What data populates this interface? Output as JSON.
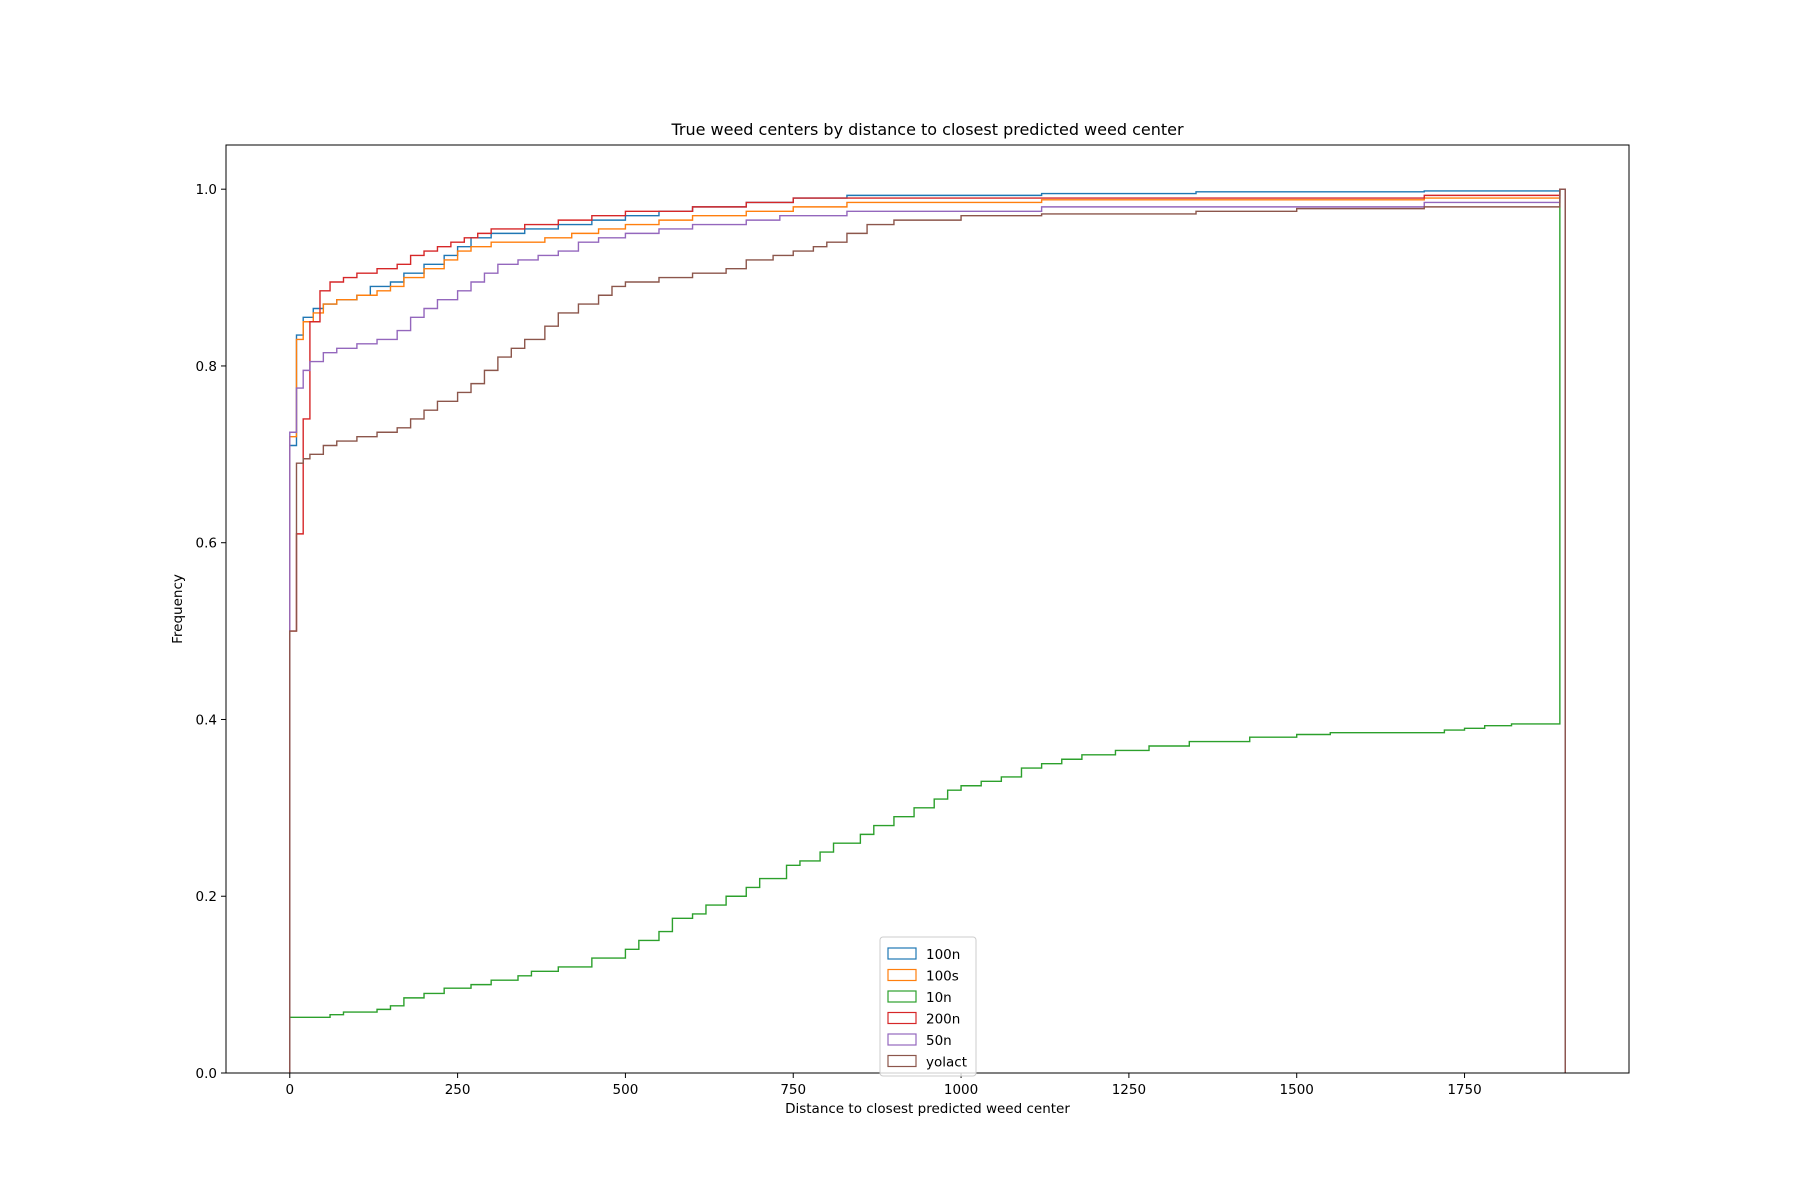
{
  "chart_data": {
    "type": "line",
    "subtype": "cumulative-step-histogram",
    "title": "True weed centers by distance to closest predicted weed center",
    "xlabel": "Distance to closest predicted weed center",
    "ylabel": "Frequency",
    "xlim": [
      -95,
      1995
    ],
    "ylim": [
      0,
      1.05
    ],
    "xticks": [
      0,
      250,
      500,
      750,
      1000,
      1250,
      1500,
      1750
    ],
    "yticks": [
      0.0,
      0.2,
      0.4,
      0.6,
      0.8,
      1.0
    ],
    "xtick_labels": [
      "0",
      "250",
      "500",
      "750",
      "1000",
      "1250",
      "1500",
      "1750"
    ],
    "ytick_labels": [
      "0.0",
      "0.2",
      "0.4",
      "0.6",
      "0.8",
      "1.0"
    ],
    "grid": false,
    "legend_position": "lower-center",
    "x_end": 1900,
    "series": [
      {
        "name": "100n",
        "color": "#1f77b4",
        "points": [
          [
            0,
            0.71
          ],
          [
            10,
            0.835
          ],
          [
            20,
            0.855
          ],
          [
            35,
            0.865
          ],
          [
            50,
            0.87
          ],
          [
            70,
            0.875
          ],
          [
            100,
            0.88
          ],
          [
            120,
            0.89
          ],
          [
            150,
            0.895
          ],
          [
            170,
            0.905
          ],
          [
            200,
            0.915
          ],
          [
            230,
            0.925
          ],
          [
            250,
            0.935
          ],
          [
            270,
            0.945
          ],
          [
            300,
            0.95
          ],
          [
            350,
            0.955
          ],
          [
            400,
            0.96
          ],
          [
            450,
            0.965
          ],
          [
            500,
            0.97
          ],
          [
            550,
            0.975
          ],
          [
            600,
            0.98
          ],
          [
            680,
            0.985
          ],
          [
            750,
            0.99
          ],
          [
            830,
            0.993
          ],
          [
            1120,
            0.995
          ],
          [
            1350,
            0.997
          ],
          [
            1690,
            0.998
          ]
        ]
      },
      {
        "name": "100s",
        "color": "#ff7f0e",
        "points": [
          [
            0,
            0.72
          ],
          [
            10,
            0.83
          ],
          [
            20,
            0.85
          ],
          [
            35,
            0.86
          ],
          [
            50,
            0.87
          ],
          [
            70,
            0.875
          ],
          [
            100,
            0.88
          ],
          [
            130,
            0.885
          ],
          [
            150,
            0.89
          ],
          [
            170,
            0.9
          ],
          [
            200,
            0.91
          ],
          [
            230,
            0.92
          ],
          [
            250,
            0.93
          ],
          [
            270,
            0.935
          ],
          [
            300,
            0.94
          ],
          [
            380,
            0.945
          ],
          [
            420,
            0.95
          ],
          [
            460,
            0.955
          ],
          [
            500,
            0.96
          ],
          [
            550,
            0.965
          ],
          [
            600,
            0.97
          ],
          [
            680,
            0.975
          ],
          [
            750,
            0.98
          ],
          [
            830,
            0.985
          ],
          [
            1120,
            0.988
          ],
          [
            1690,
            0.99
          ]
        ]
      },
      {
        "name": "10n",
        "color": "#2ca02c",
        "points": [
          [
            0,
            0.063
          ],
          [
            60,
            0.066
          ],
          [
            80,
            0.069
          ],
          [
            130,
            0.072
          ],
          [
            150,
            0.076
          ],
          [
            170,
            0.085
          ],
          [
            200,
            0.09
          ],
          [
            230,
            0.096
          ],
          [
            270,
            0.1
          ],
          [
            300,
            0.105
          ],
          [
            340,
            0.11
          ],
          [
            360,
            0.115
          ],
          [
            400,
            0.12
          ],
          [
            450,
            0.13
          ],
          [
            500,
            0.14
          ],
          [
            520,
            0.15
          ],
          [
            550,
            0.16
          ],
          [
            570,
            0.175
          ],
          [
            600,
            0.18
          ],
          [
            620,
            0.19
          ],
          [
            650,
            0.2
          ],
          [
            680,
            0.21
          ],
          [
            700,
            0.22
          ],
          [
            740,
            0.235
          ],
          [
            760,
            0.24
          ],
          [
            790,
            0.25
          ],
          [
            810,
            0.26
          ],
          [
            850,
            0.27
          ],
          [
            870,
            0.28
          ],
          [
            900,
            0.29
          ],
          [
            930,
            0.3
          ],
          [
            960,
            0.31
          ],
          [
            980,
            0.32
          ],
          [
            1000,
            0.325
          ],
          [
            1030,
            0.33
          ],
          [
            1060,
            0.335
          ],
          [
            1090,
            0.345
          ],
          [
            1120,
            0.35
          ],
          [
            1150,
            0.355
          ],
          [
            1180,
            0.36
          ],
          [
            1230,
            0.365
          ],
          [
            1280,
            0.37
          ],
          [
            1340,
            0.375
          ],
          [
            1430,
            0.38
          ],
          [
            1500,
            0.383
          ],
          [
            1550,
            0.385
          ],
          [
            1720,
            0.388
          ],
          [
            1750,
            0.39
          ],
          [
            1780,
            0.393
          ],
          [
            1820,
            0.395
          ]
        ]
      },
      {
        "name": "200n",
        "color": "#d62728",
        "points": [
          [
            0,
            0.5
          ],
          [
            10,
            0.61
          ],
          [
            20,
            0.74
          ],
          [
            30,
            0.85
          ],
          [
            45,
            0.885
          ],
          [
            60,
            0.895
          ],
          [
            80,
            0.9
          ],
          [
            100,
            0.905
          ],
          [
            130,
            0.91
          ],
          [
            160,
            0.915
          ],
          [
            180,
            0.925
          ],
          [
            200,
            0.93
          ],
          [
            220,
            0.935
          ],
          [
            240,
            0.94
          ],
          [
            260,
            0.945
          ],
          [
            280,
            0.95
          ],
          [
            300,
            0.955
          ],
          [
            350,
            0.96
          ],
          [
            400,
            0.965
          ],
          [
            450,
            0.97
          ],
          [
            500,
            0.975
          ],
          [
            600,
            0.98
          ],
          [
            680,
            0.985
          ],
          [
            750,
            0.99
          ],
          [
            1690,
            0.993
          ]
        ]
      },
      {
        "name": "50n",
        "color": "#9467bd",
        "points": [
          [
            0,
            0.725
          ],
          [
            10,
            0.775
          ],
          [
            20,
            0.795
          ],
          [
            30,
            0.805
          ],
          [
            50,
            0.815
          ],
          [
            70,
            0.82
          ],
          [
            100,
            0.825
          ],
          [
            130,
            0.83
          ],
          [
            160,
            0.84
          ],
          [
            180,
            0.855
          ],
          [
            200,
            0.865
          ],
          [
            220,
            0.875
          ],
          [
            250,
            0.885
          ],
          [
            270,
            0.895
          ],
          [
            290,
            0.905
          ],
          [
            310,
            0.915
          ],
          [
            340,
            0.92
          ],
          [
            370,
            0.925
          ],
          [
            400,
            0.93
          ],
          [
            430,
            0.94
          ],
          [
            460,
            0.945
          ],
          [
            500,
            0.95
          ],
          [
            550,
            0.955
          ],
          [
            600,
            0.96
          ],
          [
            680,
            0.965
          ],
          [
            730,
            0.97
          ],
          [
            830,
            0.975
          ],
          [
            1120,
            0.98
          ],
          [
            1690,
            0.985
          ]
        ]
      },
      {
        "name": "yolact",
        "color": "#8c564b",
        "points": [
          [
            0,
            0.5
          ],
          [
            10,
            0.69
          ],
          [
            20,
            0.695
          ],
          [
            30,
            0.7
          ],
          [
            50,
            0.71
          ],
          [
            70,
            0.715
          ],
          [
            100,
            0.72
          ],
          [
            130,
            0.725
          ],
          [
            160,
            0.73
          ],
          [
            180,
            0.74
          ],
          [
            200,
            0.75
          ],
          [
            220,
            0.76
          ],
          [
            250,
            0.77
          ],
          [
            270,
            0.78
          ],
          [
            290,
            0.795
          ],
          [
            310,
            0.81
          ],
          [
            330,
            0.82
          ],
          [
            350,
            0.83
          ],
          [
            380,
            0.845
          ],
          [
            400,
            0.86
          ],
          [
            430,
            0.87
          ],
          [
            460,
            0.88
          ],
          [
            480,
            0.89
          ],
          [
            500,
            0.895
          ],
          [
            550,
            0.9
          ],
          [
            600,
            0.905
          ],
          [
            650,
            0.91
          ],
          [
            680,
            0.92
          ],
          [
            720,
            0.925
          ],
          [
            750,
            0.93
          ],
          [
            780,
            0.935
          ],
          [
            800,
            0.94
          ],
          [
            830,
            0.95
          ],
          [
            860,
            0.96
          ],
          [
            900,
            0.965
          ],
          [
            1000,
            0.97
          ],
          [
            1120,
            0.972
          ],
          [
            1350,
            0.975
          ],
          [
            1500,
            0.978
          ],
          [
            1690,
            0.98
          ]
        ]
      }
    ]
  }
}
